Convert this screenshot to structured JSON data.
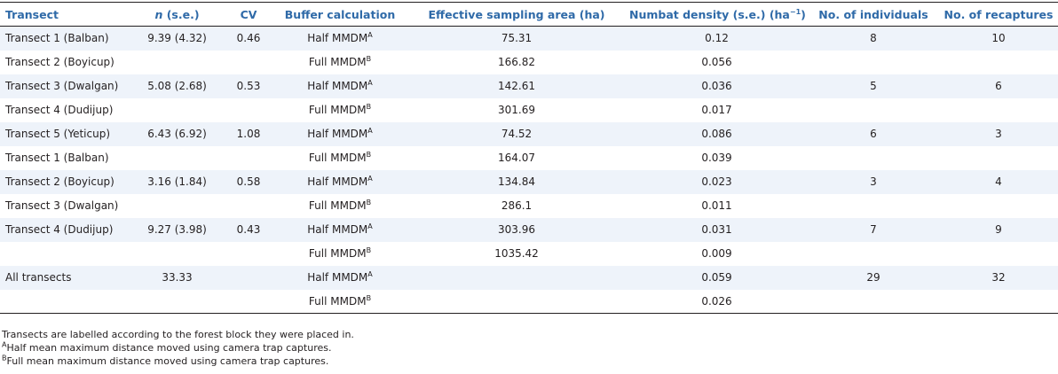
{
  "table": {
    "columns": {
      "transect": "Transect",
      "n_var": "n",
      "n_rest": " (s.e.)",
      "cv": "CV",
      "buffer": "Buffer calculation",
      "area": "Effective sampling area (ha)",
      "density_pre": "Numbat density (s.e.) (ha",
      "density_sup": "−1",
      "density_post": ")",
      "individuals": "No. of individuals",
      "recaptures": "No. of recaptures"
    },
    "rows": [
      {
        "transect": "Transect 1 (Balban)",
        "n": "9.39 (4.32)",
        "cv": "0.46",
        "buffer": "Half MMDM",
        "sup": "A",
        "area": "75.31",
        "density": "0.12",
        "individuals": "8",
        "recaptures": "10"
      },
      {
        "transect": "Transect 2 (Boyicup)",
        "n": "",
        "cv": "",
        "buffer": "Full MMDM",
        "sup": "B",
        "area": "166.82",
        "density": "0.056",
        "individuals": "",
        "recaptures": ""
      },
      {
        "transect": "Transect 3 (Dwalgan)",
        "n": "5.08 (2.68)",
        "cv": "0.53",
        "buffer": "Half MMDM",
        "sup": "A",
        "area": "142.61",
        "density": "0.036",
        "individuals": "5",
        "recaptures": "6"
      },
      {
        "transect": "Transect 4 (Dudijup)",
        "n": "",
        "cv": "",
        "buffer": "Full MMDM",
        "sup": "B",
        "area": "301.69",
        "density": "0.017",
        "individuals": "",
        "recaptures": ""
      },
      {
        "transect": "Transect 5 (Yeticup)",
        "n": "6.43 (6.92)",
        "cv": "1.08",
        "buffer": "Half MMDM",
        "sup": "A",
        "area": "74.52",
        "density": "0.086",
        "individuals": "6",
        "recaptures": "3"
      },
      {
        "transect": "Transect 1 (Balban)",
        "n": "",
        "cv": "",
        "buffer": "Full MMDM",
        "sup": "B",
        "area": "164.07",
        "density": "0.039",
        "individuals": "",
        "recaptures": ""
      },
      {
        "transect": "Transect 2 (Boyicup)",
        "n": "3.16 (1.84)",
        "cv": "0.58",
        "buffer": "Half MMDM",
        "sup": "A",
        "area": "134.84",
        "density": "0.023",
        "individuals": "3",
        "recaptures": "4"
      },
      {
        "transect": "Transect 3 (Dwalgan)",
        "n": "",
        "cv": "",
        "buffer": "Full MMDM",
        "sup": "B",
        "area": "286.1",
        "density": "0.011",
        "individuals": "",
        "recaptures": ""
      },
      {
        "transect": "Transect 4 (Dudijup)",
        "n": "9.27 (3.98)",
        "cv": "0.43",
        "buffer": "Half MMDM",
        "sup": "A",
        "area": "303.96",
        "density": "0.031",
        "individuals": "7",
        "recaptures": "9"
      },
      {
        "transect": "",
        "n": "",
        "cv": "",
        "buffer": "Full MMDM",
        "sup": "B",
        "area": "1035.42",
        "density": "0.009",
        "individuals": "",
        "recaptures": ""
      },
      {
        "transect": "All transects",
        "n": "33.33",
        "cv": "",
        "buffer": "Half MMDM",
        "sup": "A",
        "area": "",
        "density": "0.059",
        "individuals": "29",
        "recaptures": "32"
      },
      {
        "transect": "",
        "n": "",
        "cv": "",
        "buffer": "Full MMDM",
        "sup": "B",
        "area": "",
        "density": "0.026",
        "individuals": "",
        "recaptures": ""
      }
    ]
  },
  "notes": {
    "general": "Transects are labelled according to the forest block they were placed in.",
    "a_sup": "A",
    "a_text": "Half mean maximum distance moved using camera trap captures.",
    "b_sup": "B",
    "b_text": "Full mean maximum distance moved using camera trap captures."
  }
}
